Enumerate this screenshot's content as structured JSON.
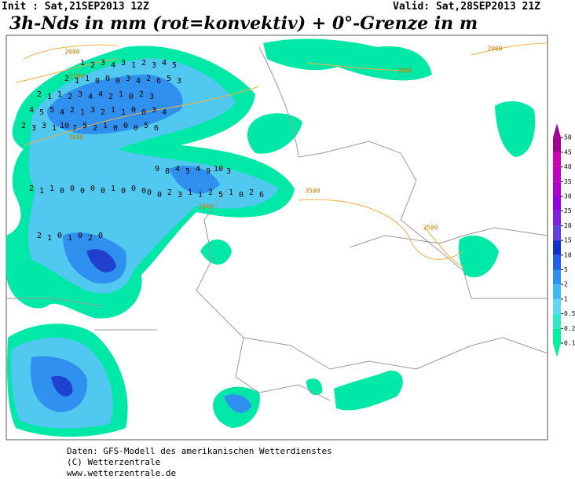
{
  "header": {
    "init": "Init : Sat,21SEP2013 12Z",
    "valid": "Valid: Sat,28SEP2013 21Z",
    "title": "3h-Nds in mm (rot=konvektiv) + 0°-Grenze in m"
  },
  "footer": [
    "Daten: GFS-Modell des amerikanischen Wetterdienstes",
    "(C) Wetterzentrale",
    "www.wetterzentrale.de"
  ],
  "contour_labels": [
    2000,
    2500,
    3000,
    3000,
    3500,
    3500,
    2000,
    3000
  ],
  "map_labels": [
    1,
    2,
    3,
    4,
    3,
    1,
    2,
    3,
    4,
    5,
    2,
    1,
    1,
    0,
    0,
    0,
    3,
    4,
    2,
    6,
    5,
    3,
    2,
    1,
    1,
    2,
    3,
    4,
    4,
    2,
    1,
    0,
    2,
    3,
    4,
    5,
    5,
    4,
    2,
    1,
    3,
    2,
    1,
    1,
    0,
    0,
    3,
    4,
    2,
    3,
    3,
    1,
    10,
    7,
    5,
    2,
    1,
    0,
    0,
    0,
    5,
    6,
    9,
    8,
    4,
    5,
    4,
    9,
    10,
    3,
    2,
    1,
    1,
    0,
    0,
    0,
    0,
    0,
    1,
    0,
    0,
    0,
    0,
    0,
    2,
    3,
    1,
    1,
    2,
    5,
    1,
    0,
    2,
    6,
    2,
    1,
    0,
    1,
    0,
    2,
    0
  ],
  "legend": {
    "levels": [
      0.1,
      0.2,
      0.5,
      1,
      2,
      5,
      10,
      15,
      20,
      25,
      30,
      35,
      40,
      45,
      50
    ],
    "colors": [
      "#00f0a0",
      "#30e8c8",
      "#60d8f0",
      "#40b8f0",
      "#3090f0",
      "#2060e8",
      "#1030d0",
      "#6040e0",
      "#8020e0",
      "#9000e0",
      "#b000d0",
      "#c000c0",
      "#d000b0",
      "#a00090"
    ]
  }
}
